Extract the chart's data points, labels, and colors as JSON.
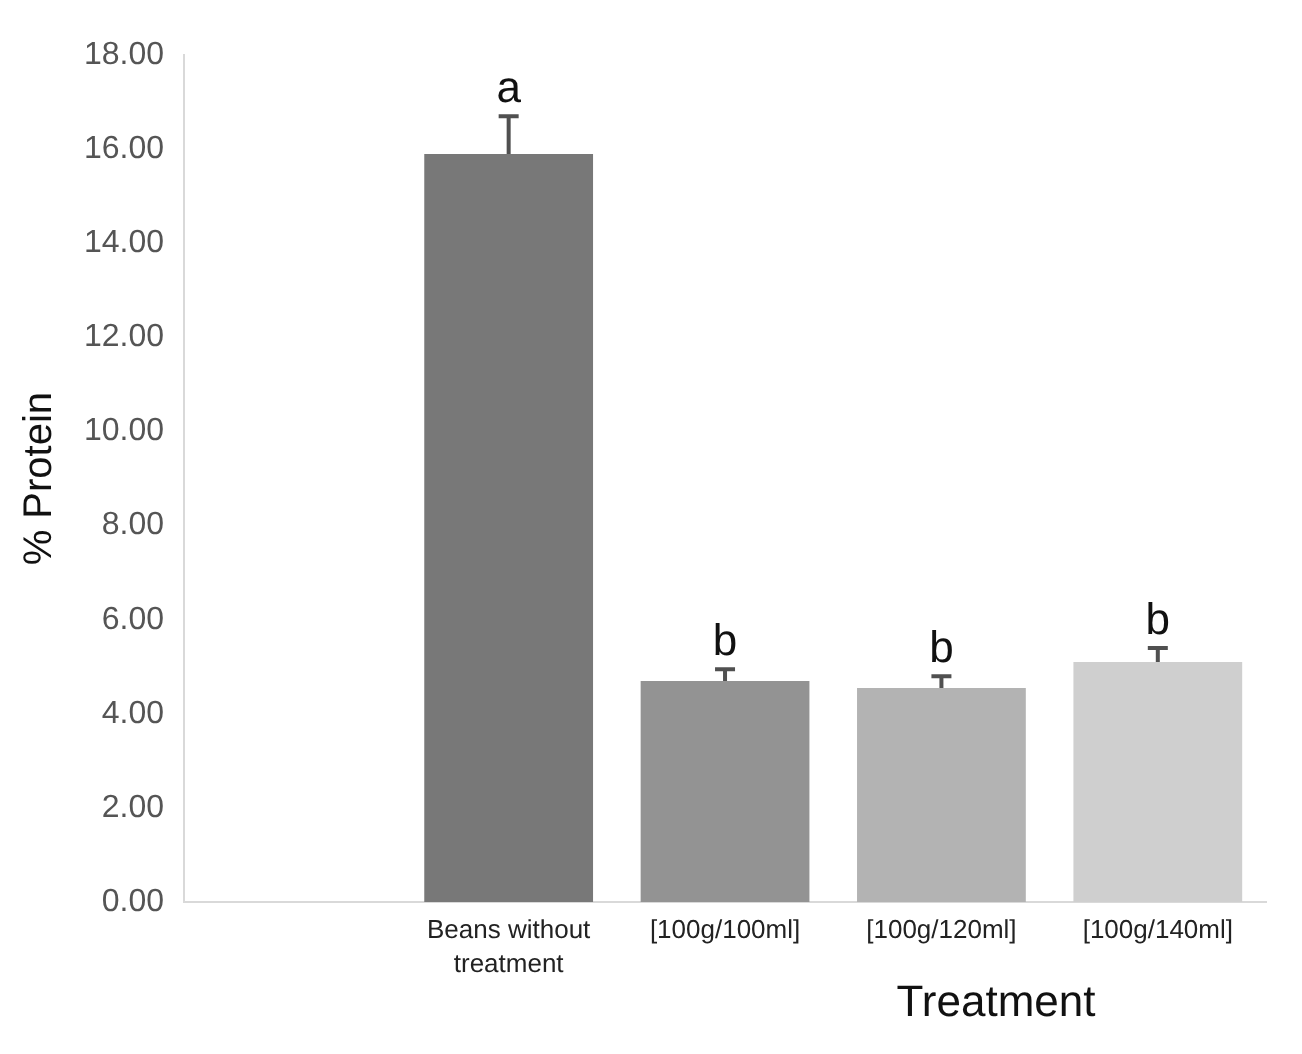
{
  "chart_data": {
    "type": "bar",
    "xlabel": "Treatment",
    "ylabel": "% Protein",
    "categories": [
      null,
      "Beans without treatment",
      "[100g/100ml]",
      "[100g/120ml]",
      "[100g/140ml]"
    ],
    "values": [
      null,
      15.9,
      4.7,
      4.55,
      5.1
    ],
    "colors": [
      "#787878",
      "#787878",
      "#939393",
      "#b3b3b3",
      "#cfcfcf"
    ],
    "errors": [
      null,
      [
        15.9,
        16.7
      ],
      [
        4.7,
        4.95
      ],
      [
        4.55,
        4.8
      ],
      [
        5.1,
        5.4
      ]
    ],
    "ylim": [
      0,
      18
    ],
    "yticks": [
      {
        "value": 0,
        "label": "0.00"
      },
      {
        "value": 2,
        "label": "2.00"
      },
      {
        "value": 4,
        "label": "4.00"
      },
      {
        "value": 6,
        "label": "6.00"
      },
      {
        "value": 8,
        "label": "8.00"
      },
      {
        "value": 10,
        "label": "10.00"
      },
      {
        "value": 12,
        "label": "12.00"
      },
      {
        "value": 14,
        "label": "14.00"
      },
      {
        "value": 16,
        "label": "16.00"
      },
      {
        "value": 18,
        "label": "18.00"
      }
    ],
    "annotations": [
      {
        "text": "a",
        "x": "Beans without treatment",
        "y": 16.7
      },
      {
        "text": "b",
        "x": "[100g/100ml]",
        "y": 4.95
      },
      {
        "text": "b",
        "x": "[100g/120ml]",
        "y": 4.8
      },
      {
        "text": "b",
        "x": "[100g/140ml]",
        "y": 5.4
      }
    ],
    "grid": false,
    "legend": false
  }
}
